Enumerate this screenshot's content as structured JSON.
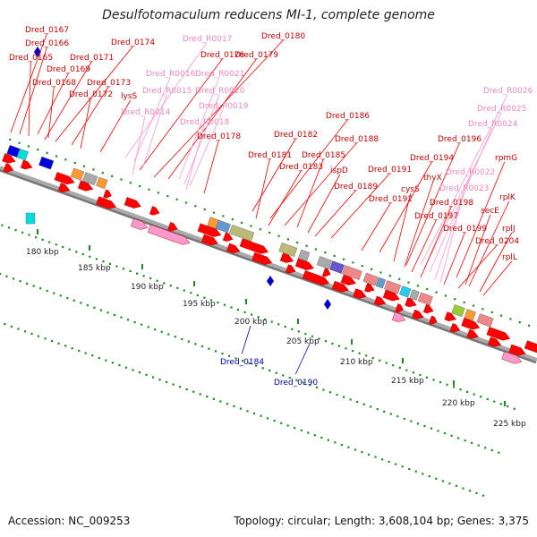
{
  "title": "Desulfotomaculum reducens MI-1, complete genome",
  "footer": {
    "accession": "Accession: NC_009253",
    "topology": "Topology: circular; Length: 3,608,104 bp; Genes: 3,375"
  },
  "colors": {
    "forward_gene": "#ff0000",
    "rna_gene": "#ff99cc",
    "reverse_gene": "#0000cc",
    "label_red": "#cc0000",
    "label_pink": "#ee88bb",
    "label_blue": "#0000aa",
    "backbone": "#aaaaaa",
    "tick": "#228b22"
  },
  "kbp_labels": [
    "180 kbp",
    "185 kbp",
    "190 kbp",
    "195 kbp",
    "200 kbp",
    "205 kbp",
    "210 kbp",
    "215 kbp",
    "220 kbp",
    "225 kbp"
  ],
  "gene_labels": [
    {
      "text": "Dred_0167",
      "kind": "forward"
    },
    {
      "text": "Dred_0166",
      "kind": "forward"
    },
    {
      "text": "Dred_0165",
      "kind": "forward"
    },
    {
      "text": "Dred_0171",
      "kind": "forward"
    },
    {
      "text": "Dred_0174",
      "kind": "forward"
    },
    {
      "text": "Dred_R0017",
      "kind": "rna"
    },
    {
      "text": "Dred_0180",
      "kind": "forward"
    },
    {
      "text": "Dred_0169",
      "kind": "forward"
    },
    {
      "text": "Dred_0168",
      "kind": "forward"
    },
    {
      "text": "Dred_0173",
      "kind": "forward"
    },
    {
      "text": "Dred_0172",
      "kind": "forward"
    },
    {
      "text": "lysS",
      "kind": "forward"
    },
    {
      "text": "Dred_0176",
      "kind": "forward"
    },
    {
      "text": "Dred_0179",
      "kind": "forward"
    },
    {
      "text": "Dred_R0016",
      "kind": "rna"
    },
    {
      "text": "Dred_R0021",
      "kind": "rna"
    },
    {
      "text": "Dred_R0015",
      "kind": "rna"
    },
    {
      "text": "Dred_R0020",
      "kind": "rna"
    },
    {
      "text": "Dred_R0014",
      "kind": "rna"
    },
    {
      "text": "Dred_R0019",
      "kind": "rna"
    },
    {
      "text": "Dred_R0018",
      "kind": "rna"
    },
    {
      "text": "Dred_0178",
      "kind": "forward"
    },
    {
      "text": "Dred_0186",
      "kind": "forward"
    },
    {
      "text": "Dred_0182",
      "kind": "forward"
    },
    {
      "text": "Dred_0188",
      "kind": "forward"
    },
    {
      "text": "Dred_0181",
      "kind": "forward"
    },
    {
      "text": "Dred_0185",
      "kind": "forward"
    },
    {
      "text": "Dred_0183",
      "kind": "forward"
    },
    {
      "text": "ispD",
      "kind": "forward"
    },
    {
      "text": "Dred_0191",
      "kind": "forward"
    },
    {
      "text": "Dred_0189",
      "kind": "forward"
    },
    {
      "text": "Dred_0194",
      "kind": "forward"
    },
    {
      "text": "Dred_0196",
      "kind": "forward"
    },
    {
      "text": "Dred_R0026",
      "kind": "rna"
    },
    {
      "text": "Dred_R0025",
      "kind": "rna"
    },
    {
      "text": "Dred_R0024",
      "kind": "rna"
    },
    {
      "text": "rpmG",
      "kind": "forward"
    },
    {
      "text": "Dred_R0022",
      "kind": "rna"
    },
    {
      "text": "thyX",
      "kind": "forward"
    },
    {
      "text": "cysS",
      "kind": "forward"
    },
    {
      "text": "Dred_0192",
      "kind": "forward"
    },
    {
      "text": "Dred_R0023",
      "kind": "rna"
    },
    {
      "text": "Dred_0198",
      "kind": "forward"
    },
    {
      "text": "rplK",
      "kind": "forward"
    },
    {
      "text": "Dred_0197",
      "kind": "forward"
    },
    {
      "text": "secE",
      "kind": "forward"
    },
    {
      "text": "Dred_0199",
      "kind": "forward"
    },
    {
      "text": "rplJ",
      "kind": "forward"
    },
    {
      "text": "Dred_0204",
      "kind": "forward"
    },
    {
      "text": "rplL",
      "kind": "forward"
    },
    {
      "text": "Dred_0184",
      "kind": "reverse"
    },
    {
      "text": "Dred_0190",
      "kind": "reverse"
    }
  ]
}
